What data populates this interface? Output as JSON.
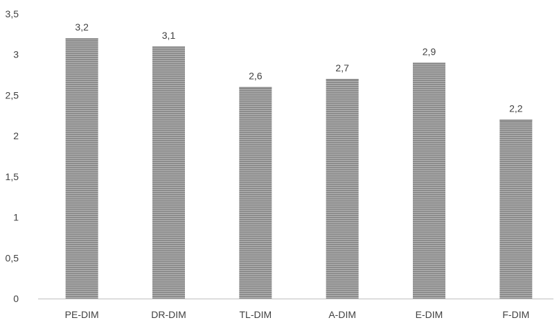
{
  "chart_data": {
    "type": "bar",
    "categories": [
      "PE-DIM",
      "DR-DIM",
      "TL-DIM",
      "A-DIM",
      "E-DIM",
      "F-DIM"
    ],
    "values": [
      3.2,
      3.1,
      2.6,
      2.7,
      2.9,
      2.2
    ],
    "data_labels": [
      "3,2",
      "3,1",
      "2,6",
      "2,7",
      "2,9",
      "2,2"
    ],
    "y_ticks": [
      0,
      0.5,
      1,
      1.5,
      2,
      2.5,
      3,
      3.5
    ],
    "y_tick_labels": [
      "0",
      "0,5",
      "1",
      "1,5",
      "2",
      "2,5",
      "3",
      "3,5"
    ],
    "ylim": [
      0,
      3.5
    ],
    "title": "",
    "xlabel": "",
    "ylabel": "",
    "grid": false,
    "legend": "none",
    "bar_color": "#8c8c8c",
    "bar_stripe_color": "#b5b5b5",
    "axis_color": "#bfbfbf"
  }
}
